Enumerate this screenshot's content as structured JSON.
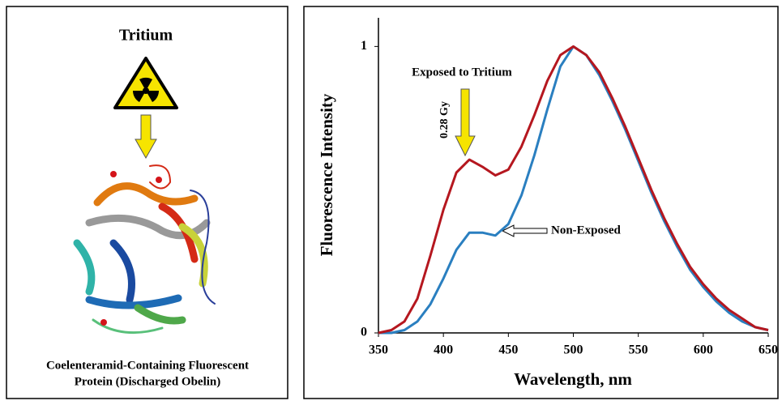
{
  "left_panel": {
    "title": "Tritium",
    "caption": [
      "Coelenteramid-Containing Fluorescent",
      "Protein (Discharged Obelin)"
    ]
  },
  "chart_data": {
    "type": "line",
    "xlabel": "Wavelength, nm",
    "ylabel": "Fluorescence Intensity",
    "annotations": [
      "Exposed to Tritium",
      "0.28 Gy",
      "Non-Exposed"
    ],
    "x": [
      350,
      360,
      370,
      380,
      390,
      400,
      410,
      420,
      430,
      440,
      450,
      460,
      470,
      480,
      490,
      500,
      510,
      520,
      530,
      540,
      550,
      560,
      570,
      580,
      590,
      600,
      610,
      620,
      630,
      640,
      650
    ],
    "series": [
      {
        "name": "Exposed to Tritium",
        "color": "#b5171f",
        "values": [
          0,
          0.01,
          0.04,
          0.12,
          0.27,
          0.43,
          0.56,
          0.605,
          0.58,
          0.55,
          0.57,
          0.65,
          0.76,
          0.88,
          0.97,
          1.0,
          0.97,
          0.91,
          0.82,
          0.72,
          0.61,
          0.5,
          0.4,
          0.31,
          0.23,
          0.17,
          0.12,
          0.08,
          0.05,
          0.02,
          0.01
        ]
      },
      {
        "name": "Non-Exposed",
        "color": "#2a7fc0",
        "values": [
          0,
          0,
          0.01,
          0.04,
          0.1,
          0.19,
          0.29,
          0.35,
          0.35,
          0.34,
          0.38,
          0.48,
          0.62,
          0.78,
          0.93,
          1.0,
          0.97,
          0.9,
          0.81,
          0.71,
          0.6,
          0.49,
          0.39,
          0.3,
          0.22,
          0.16,
          0.11,
          0.07,
          0.04,
          0.02,
          0.01
        ]
      }
    ],
    "xlim": [
      350,
      650
    ],
    "xticks": [
      350,
      400,
      450,
      500,
      550,
      600,
      650
    ],
    "ylim": [
      0,
      1.1
    ],
    "yticks": [
      0,
      1
    ],
    "grid": false
  }
}
